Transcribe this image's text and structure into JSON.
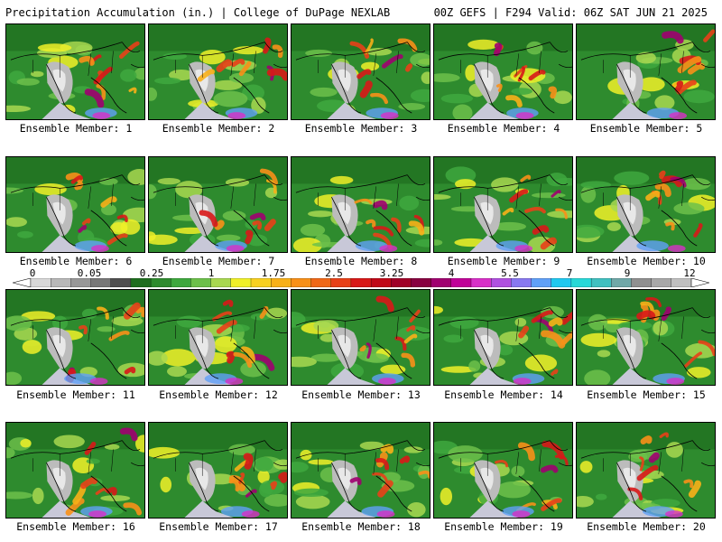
{
  "header": {
    "title_left": "Precipitation Accumulation (in.) | College of DuPage NEXLAB",
    "title_right": "00Z GEFS | F294 Valid: 06Z SAT JUN 21 2025"
  },
  "members": [
    {
      "label": "Ensemble Member: 1"
    },
    {
      "label": "Ensemble Member: 2"
    },
    {
      "label": "Ensemble Member: 3"
    },
    {
      "label": "Ensemble Member: 4"
    },
    {
      "label": "Ensemble Member: 5"
    },
    {
      "label": "Ensemble Member: 6"
    },
    {
      "label": "Ensemble Member: 7"
    },
    {
      "label": "Ensemble Member: 8"
    },
    {
      "label": "Ensemble Member: 9"
    },
    {
      "label": "Ensemble Member: 10"
    },
    {
      "label": "Ensemble Member: 11"
    },
    {
      "label": "Ensemble Member: 12"
    },
    {
      "label": "Ensemble Member: 13"
    },
    {
      "label": "Ensemble Member: 14"
    },
    {
      "label": "Ensemble Member: 15"
    },
    {
      "label": "Ensemble Member: 16"
    },
    {
      "label": "Ensemble Member: 17"
    },
    {
      "label": "Ensemble Member: 18"
    },
    {
      "label": "Ensemble Member: 19"
    },
    {
      "label": "Ensemble Member: 20"
    }
  ],
  "colorbar": {
    "tick_labels": [
      "0",
      "0.05",
      "0.25",
      "1",
      "1.75",
      "2.5",
      "3.25",
      "4",
      "5.5",
      "7",
      "9",
      "12"
    ],
    "colors": [
      "#d8d8d8",
      "#b8b8b8",
      "#989898",
      "#787878",
      "#4f4f4f",
      "#1f6e1f",
      "#2e8b2e",
      "#3ea83e",
      "#6cc04a",
      "#a8d850",
      "#f0f028",
      "#f8d020",
      "#f8b018",
      "#f89018",
      "#f06818",
      "#e84018",
      "#d81818",
      "#c00818",
      "#a00028",
      "#880040",
      "#a00070",
      "#c00098",
      "#d830c8",
      "#b050e0",
      "#8878f0",
      "#60a0f8",
      "#20c8f0",
      "#28d8d8",
      "#40c0c0",
      "#70a8a8",
      "#909090",
      "#a8a8a8",
      "#c0c0c0"
    ]
  }
}
